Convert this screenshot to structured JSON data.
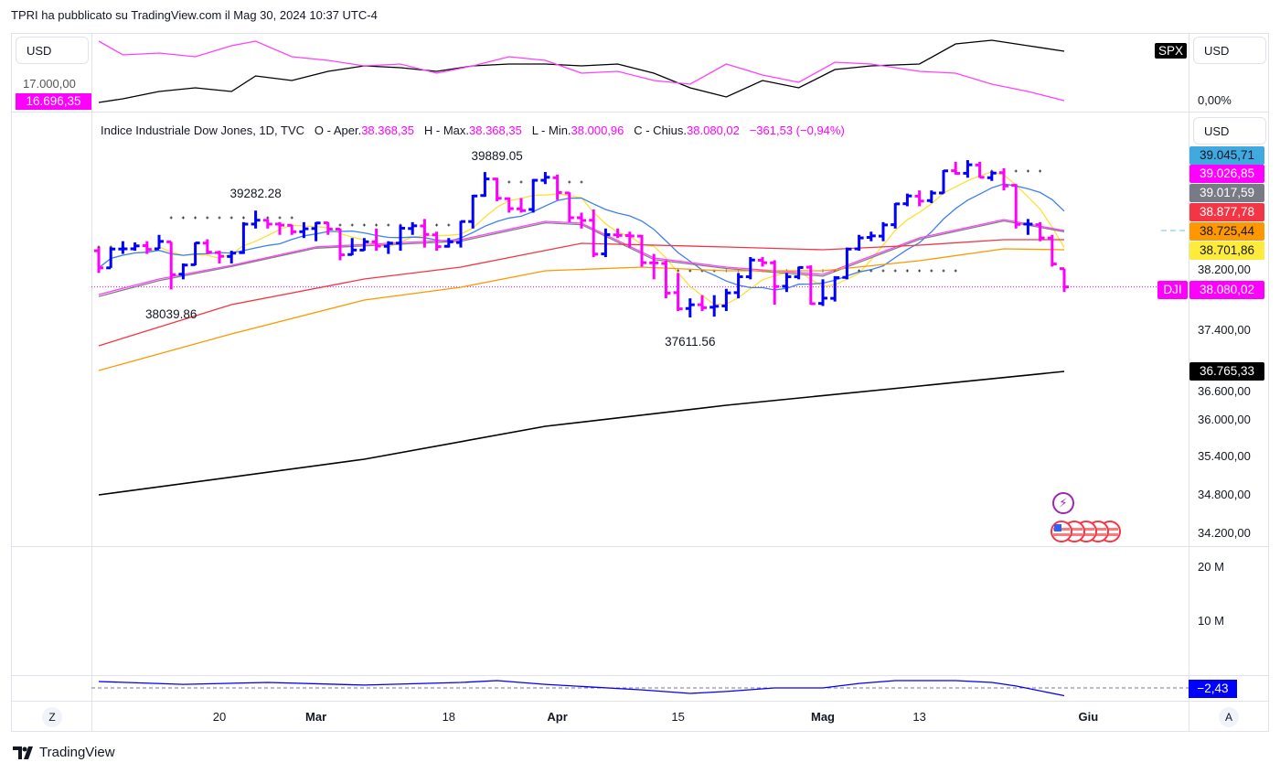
{
  "header": {
    "title": "TPRI ha pubblicato su TradingView.com il Mag 30, 2024 10:37 UTC-4"
  },
  "compare_pane": {
    "currency_left": "USD",
    "currency_right": "USD",
    "left_tick": "17.000,00",
    "left_badge": "16.696,35",
    "right_tick": "0,00%",
    "symbol_badge": "SPX",
    "colors": {
      "spx": "#000000",
      "ratio": "#ff40ff"
    }
  },
  "legend": {
    "name": "Indice Industriale Dow Jones, 1D, TVC",
    "open_label": "O - Aper.",
    "open": "38.368,35",
    "high_label": "H - Max.",
    "high": "38.368,35",
    "low_label": "L - Min.",
    "low": "38.000,96",
    "close_label": "C - Chius.",
    "close": "38.080,02",
    "change": "−361,53 (−0,94%)"
  },
  "price_axis": {
    "currency": "USD",
    "ticks": [
      "37.400,00",
      "36.600,00",
      "36.000,00",
      "35.400,00",
      "34.800,00",
      "34.200,00",
      "38.200,00"
    ],
    "badges": [
      {
        "value": "39.045,71",
        "bg": "#3fa9e0",
        "fg": "#131722"
      },
      {
        "value": "39.026,85",
        "bg": "#ff00ff",
        "fg": "#ffffff"
      },
      {
        "value": "39.017,59",
        "bg": "#787b86",
        "fg": "#ffffff"
      },
      {
        "value": "38.877,78",
        "bg": "#f23645",
        "fg": "#ffffff"
      },
      {
        "value": "38.725,44",
        "bg": "#ff9800",
        "fg": "#131722"
      },
      {
        "value": "38.701,86",
        "bg": "#ffeb3b",
        "fg": "#131722"
      },
      {
        "value": "38.080,02",
        "bg": "#ff00ff",
        "fg": "#ffffff"
      },
      {
        "value": "36.765,33",
        "bg": "#000000",
        "fg": "#ffffff"
      }
    ],
    "symbol_badge": "DJI"
  },
  "volume_axis": {
    "ticks": [
      "20 M",
      "10 M"
    ]
  },
  "oscillator": {
    "badge": "−2,43",
    "color": "#0000ff",
    "values": [
      [
        0,
        2
      ],
      [
        7,
        1.1
      ],
      [
        14,
        1.7
      ],
      [
        22,
        0.9
      ],
      [
        30,
        1.7
      ],
      [
        33,
        2.3
      ],
      [
        37,
        1.1
      ],
      [
        45,
        -0.6
      ],
      [
        49,
        -1.7
      ],
      [
        52,
        -1.1
      ],
      [
        56,
        0
      ],
      [
        60,
        0
      ],
      [
        63,
        1.4
      ],
      [
        66,
        2.3
      ],
      [
        71,
        2.3
      ],
      [
        74,
        1.7
      ],
      [
        76,
        0.6
      ],
      [
        80,
        -2.43
      ]
    ]
  },
  "time_axis": {
    "labels": [
      {
        "text": "20",
        "index": 10
      },
      {
        "text": "Mar",
        "index": 18
      },
      {
        "text": "18",
        "index": 29
      },
      {
        "text": "Apr",
        "index": 38
      },
      {
        "text": "15",
        "index": 48
      },
      {
        "text": "Mag",
        "index": 60
      },
      {
        "text": "13",
        "index": 68
      },
      {
        "text": "Giu",
        "index": 82
      }
    ],
    "left_button": "Z",
    "right_button": "A"
  },
  "annotations": [
    {
      "text": "39889.05",
      "index": 33,
      "price": 40130
    },
    {
      "text": "39282.28",
      "index": 13,
      "price": 39540
    },
    {
      "text": "38039.86",
      "index": 6,
      "price": 37640
    },
    {
      "text": "37611.56",
      "index": 49,
      "price": 37210
    }
  ],
  "footer": {
    "brand": "TradingView"
  },
  "chart_data": {
    "type": "ohlc",
    "title": "Indice Industriale Dow Jones, 1D, TVC",
    "ylim": [
      34200,
      40600
    ],
    "colors": {
      "up": "#0000ff",
      "down": "#ff00ff"
    },
    "ohlc": [
      [
        38650,
        38700,
        38300,
        38380
      ],
      [
        38380,
        38700,
        38380,
        38677
      ],
      [
        38677,
        38800,
        38600,
        38680
      ],
      [
        38680,
        38780,
        38650,
        38726
      ],
      [
        38730,
        38800,
        38600,
        38671
      ],
      [
        38680,
        38900,
        38680,
        38797
      ],
      [
        38790,
        38790,
        38040,
        38272
      ],
      [
        38280,
        38450,
        38200,
        38424
      ],
      [
        38430,
        38780,
        38420,
        38773
      ],
      [
        38770,
        38830,
        38600,
        38627
      ],
      [
        38620,
        38650,
        38450,
        38563
      ],
      [
        38560,
        38650,
        38450,
        38612
      ],
      [
        38620,
        39100,
        38600,
        39069
      ],
      [
        39070,
        39282,
        39000,
        39131
      ],
      [
        39130,
        39150,
        39000,
        39069
      ],
      [
        39070,
        39100,
        38900,
        39053
      ],
      [
        39050,
        39060,
        38900,
        38949
      ],
      [
        38950,
        39100,
        38850,
        38996
      ],
      [
        39000,
        39100,
        38800,
        39087
      ],
      [
        39090,
        39100,
        38900,
        38990
      ],
      [
        38990,
        39000,
        38500,
        38585
      ],
      [
        38590,
        38850,
        38580,
        38661
      ],
      [
        38660,
        38850,
        38650,
        38791
      ],
      [
        38790,
        39000,
        38650,
        38723
      ],
      [
        38720,
        38800,
        38600,
        38770
      ],
      [
        38770,
        39050,
        38650,
        39005
      ],
      [
        39000,
        39100,
        38900,
        39043
      ],
      [
        39040,
        39150,
        38700,
        38906
      ],
      [
        38900,
        38950,
        38650,
        38715
      ],
      [
        38720,
        38850,
        38700,
        38790
      ],
      [
        38780,
        39120,
        38700,
        39110
      ],
      [
        39110,
        39530,
        39000,
        39512
      ],
      [
        39520,
        39889,
        39500,
        39781
      ],
      [
        39780,
        39800,
        39430,
        39476
      ],
      [
        39470,
        39490,
        39250,
        39313
      ],
      [
        39310,
        39480,
        39250,
        39282
      ],
      [
        39300,
        39780,
        39250,
        39760
      ],
      [
        39760,
        39890,
        39700,
        39807
      ],
      [
        39800,
        39850,
        39450,
        39567
      ],
      [
        39560,
        39570,
        39100,
        39170
      ],
      [
        39170,
        39250,
        39000,
        39127
      ],
      [
        39130,
        39300,
        38550,
        38597
      ],
      [
        38600,
        39000,
        38550,
        38904
      ],
      [
        38900,
        39000,
        38850,
        38892
      ],
      [
        38890,
        38950,
        38700,
        38883
      ],
      [
        38880,
        38900,
        38400,
        38462
      ],
      [
        38460,
        38600,
        38200,
        38459
      ],
      [
        38450,
        38500,
        37900,
        37983
      ],
      [
        37990,
        38300,
        37700,
        37735
      ],
      [
        37740,
        37900,
        37600,
        37799
      ],
      [
        37800,
        37950,
        37700,
        37753
      ],
      [
        37760,
        37950,
        37612,
        37775
      ],
      [
        37780,
        38050,
        37700,
        37986
      ],
      [
        37990,
        38300,
        37900,
        38240
      ],
      [
        38240,
        38550,
        38200,
        38504
      ],
      [
        38500,
        38550,
        38400,
        38461
      ],
      [
        38460,
        38500,
        37800,
        38086
      ],
      [
        38090,
        38300,
        38000,
        38240
      ],
      [
        38240,
        38400,
        38200,
        38386
      ],
      [
        38390,
        38420,
        37800,
        37816
      ],
      [
        37820,
        38200,
        37780,
        37903
      ],
      [
        37900,
        38250,
        37850,
        38226
      ],
      [
        38230,
        38700,
        38200,
        38676
      ],
      [
        38680,
        38900,
        38650,
        38852
      ],
      [
        38860,
        38950,
        38800,
        38884
      ],
      [
        38880,
        39100,
        38800,
        39056
      ],
      [
        39060,
        39400,
        39000,
        39388
      ],
      [
        39390,
        39550,
        39350,
        39513
      ],
      [
        39510,
        39600,
        39350,
        39432
      ],
      [
        39440,
        39600,
        39400,
        39558
      ],
      [
        39560,
        39920,
        39550,
        39908
      ],
      [
        39910,
        40050,
        39850,
        39869
      ],
      [
        39870,
        40077,
        39800,
        40004
      ],
      [
        40000,
        40050,
        39800,
        39807
      ],
      [
        39800,
        39900,
        39750,
        39873
      ],
      [
        39880,
        39950,
        39600,
        39671
      ],
      [
        39680,
        39700,
        39000,
        39065
      ],
      [
        39070,
        39150,
        38900,
        39070
      ],
      [
        39060,
        39100,
        38800,
        38852
      ],
      [
        38850,
        38900,
        38400,
        38441
      ],
      [
        38368,
        38368,
        38000,
        38080
      ]
    ],
    "moving_averages": [
      {
        "name": "ma-yellow",
        "color": "#ffe033",
        "period": 5,
        "computed": true
      },
      {
        "name": "ma-blue",
        "color": "#3d7ff0",
        "period": 10,
        "computed": true
      },
      {
        "name": "ma-gray",
        "color": "#808080",
        "points": [
          [
            0,
            37930
          ],
          [
            5,
            38180
          ],
          [
            11,
            38400
          ],
          [
            18,
            38690
          ],
          [
            30,
            38800
          ],
          [
            37,
            39090
          ],
          [
            40,
            39060
          ],
          [
            46,
            38510
          ],
          [
            52,
            38370
          ],
          [
            60,
            38250
          ],
          [
            68,
            38830
          ],
          [
            75,
            39120
          ],
          [
            80,
            38950
          ]
        ]
      },
      {
        "name": "ma-magenta",
        "color": "#ff40ff",
        "points": [
          [
            0,
            37960
          ],
          [
            5,
            38205
          ],
          [
            11,
            38420
          ],
          [
            18,
            38710
          ],
          [
            30,
            38824
          ],
          [
            37,
            39112
          ],
          [
            40,
            39083
          ],
          [
            46,
            38536
          ],
          [
            52,
            38392
          ],
          [
            60,
            38277
          ],
          [
            68,
            38853
          ],
          [
            75,
            39141
          ],
          [
            80,
            38968
          ]
        ]
      },
      {
        "name": "ma-red",
        "color": "#f23645",
        "points": [
          [
            0,
            37153
          ],
          [
            11,
            37801
          ],
          [
            22,
            38205
          ],
          [
            30,
            38392
          ],
          [
            40,
            38767
          ],
          [
            52,
            38709
          ],
          [
            60,
            38666
          ],
          [
            68,
            38738
          ],
          [
            75,
            38824
          ],
          [
            80,
            38824
          ]
        ]
      },
      {
        "name": "ma-orange",
        "color": "#ff9800",
        "points": [
          [
            0,
            36763
          ],
          [
            11,
            37340
          ],
          [
            22,
            37873
          ],
          [
            30,
            38075
          ],
          [
            37,
            38334
          ],
          [
            45,
            38392
          ],
          [
            52,
            38334
          ],
          [
            60,
            38334
          ],
          [
            68,
            38493
          ],
          [
            75,
            38680
          ],
          [
            80,
            38665
          ]
        ]
      },
      {
        "name": "ma-black",
        "color": "#000000",
        "points": [
          [
            0,
            34804
          ],
          [
            22,
            35366
          ],
          [
            37,
            35885
          ],
          [
            52,
            36216
          ],
          [
            68,
            36519
          ],
          [
            80,
            36749
          ]
        ]
      }
    ],
    "dot_levels": [
      [
        0,
        5,
        38709
      ],
      [
        6,
        16,
        39170
      ],
      [
        19,
        30,
        39054
      ],
      [
        32,
        40,
        39732
      ],
      [
        48,
        57,
        38334
      ],
      [
        60,
        71,
        38334
      ],
      [
        71,
        78,
        39905
      ]
    ],
    "compare_series": {
      "spx": [
        [
          0,
          0
        ],
        [
          2,
          4
        ],
        [
          5,
          12
        ],
        [
          8,
          16
        ],
        [
          11,
          12
        ],
        [
          13,
          29
        ],
        [
          16,
          24
        ],
        [
          19,
          34
        ],
        [
          22,
          40
        ],
        [
          25,
          38
        ],
        [
          28,
          34
        ],
        [
          31,
          40
        ],
        [
          34,
          42
        ],
        [
          37,
          42
        ],
        [
          40,
          40
        ],
        [
          43,
          42
        ],
        [
          46,
          32
        ],
        [
          49,
          16
        ],
        [
          52,
          6
        ],
        [
          55,
          24
        ],
        [
          58,
          16
        ],
        [
          61,
          36
        ],
        [
          64,
          40
        ],
        [
          68,
          42
        ],
        [
          71,
          64
        ],
        [
          74,
          68
        ],
        [
          77,
          62
        ],
        [
          80,
          56
        ]
      ],
      "ratio": [
        [
          0,
          67
        ],
        [
          2,
          52
        ],
        [
          5,
          54
        ],
        [
          8,
          50
        ],
        [
          11,
          62
        ],
        [
          13,
          67
        ],
        [
          16,
          50
        ],
        [
          19,
          46
        ],
        [
          22,
          40
        ],
        [
          25,
          42
        ],
        [
          28,
          32
        ],
        [
          31,
          40
        ],
        [
          34,
          50
        ],
        [
          37,
          46
        ],
        [
          40,
          32
        ],
        [
          43,
          34
        ],
        [
          46,
          24
        ],
        [
          49,
          20
        ],
        [
          52,
          42
        ],
        [
          55,
          30
        ],
        [
          58,
          22
        ],
        [
          61,
          44
        ],
        [
          64,
          42
        ],
        [
          68,
          34
        ],
        [
          71,
          32
        ],
        [
          74,
          20
        ],
        [
          77,
          12
        ],
        [
          80,
          2
        ]
      ]
    }
  }
}
